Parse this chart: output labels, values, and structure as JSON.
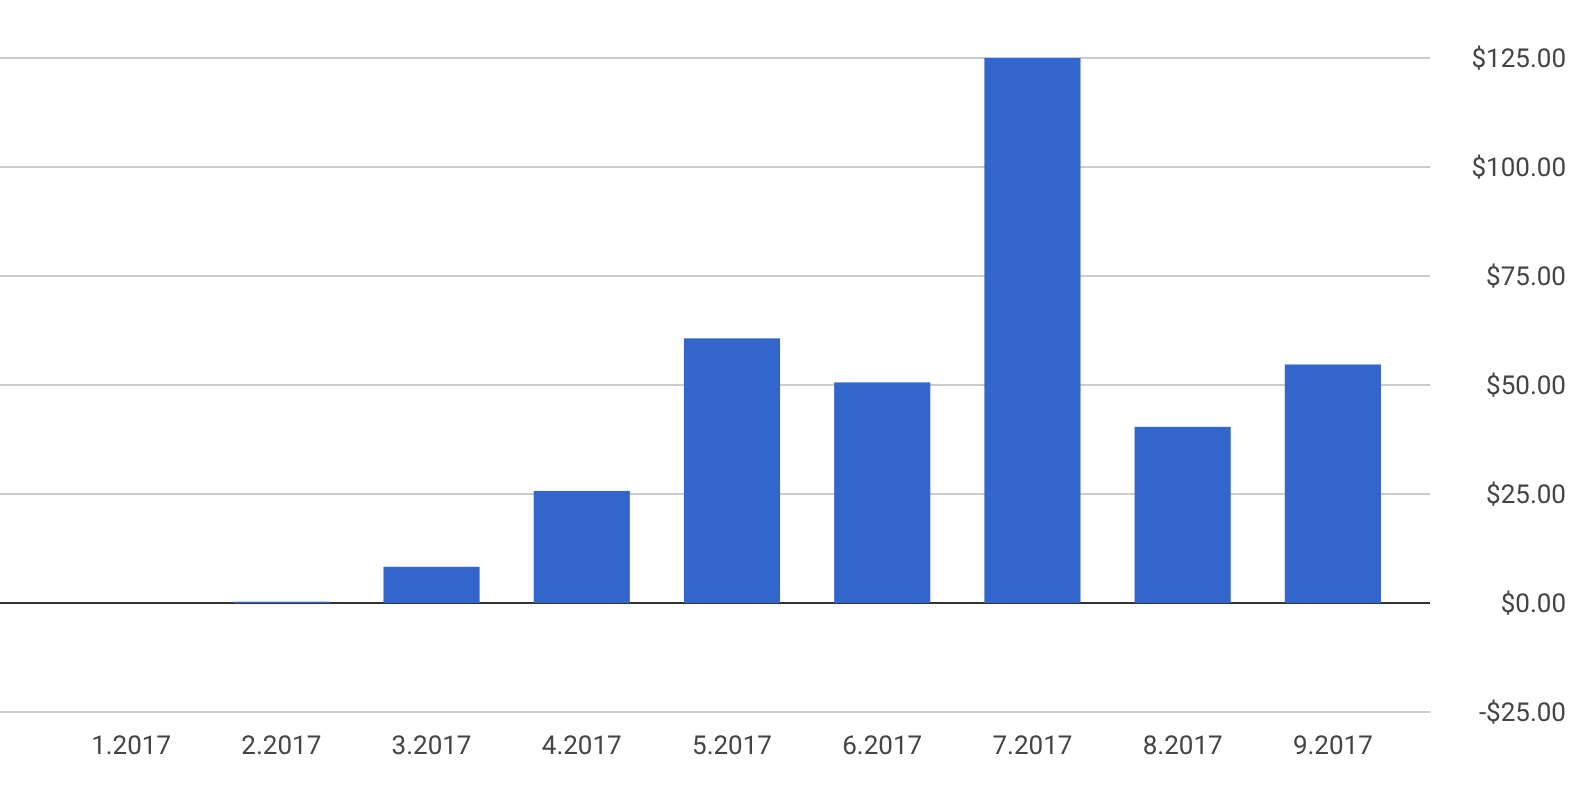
{
  "chart_data": {
    "type": "bar",
    "categories": [
      "1.2017",
      "2.2017",
      "3.2017",
      "4.2017",
      "5.2017",
      "6.2017",
      "7.2017",
      "8.2017",
      "9.2017"
    ],
    "values": [
      0,
      0.3,
      8.3,
      25.7,
      60.7,
      50.6,
      125,
      40.4,
      54.7
    ],
    "color": "#3366cc",
    "ylim": [
      -25,
      125
    ],
    "yticks": [
      {
        "value": -25,
        "label": "-$25.00"
      },
      {
        "value": 0,
        "label": "$0.00"
      },
      {
        "value": 25,
        "label": "$25.00"
      },
      {
        "value": 50,
        "label": "$50.00"
      },
      {
        "value": 75,
        "label": "$75.00"
      },
      {
        "value": 100,
        "label": "$100.00"
      },
      {
        "value": 125,
        "label": "$125.00"
      }
    ],
    "grid": true
  }
}
